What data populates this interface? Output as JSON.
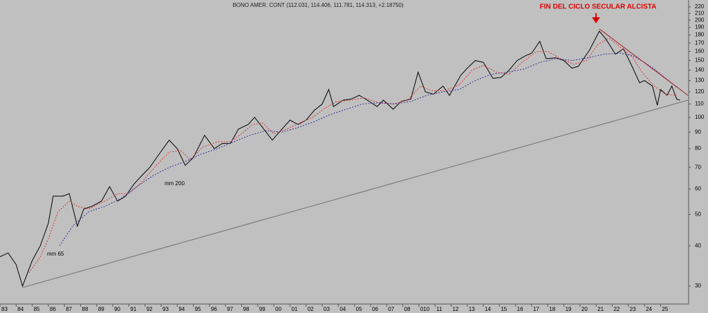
{
  "chart_data": {
    "type": "line",
    "title": "BONO AMER. CONT (112.031, 114.406, 111.781, 114.313, +2.18750)",
    "annotation": "FIN DEL CICLO SECULAR ALCISTA",
    "log_scale": true,
    "xlim": [
      1983.0,
      2025.7
    ],
    "ylim": [
      26.4,
      231
    ],
    "xticks": [
      {
        "value": 1983,
        "label": "83"
      },
      {
        "value": 1984,
        "label": "84"
      },
      {
        "value": 1985,
        "label": "85"
      },
      {
        "value": 1986,
        "label": "86"
      },
      {
        "value": 1987,
        "label": "87"
      },
      {
        "value": 1988,
        "label": "88"
      },
      {
        "value": 1989,
        "label": "89"
      },
      {
        "value": 1990,
        "label": "90"
      },
      {
        "value": 1991,
        "label": "91"
      },
      {
        "value": 1992,
        "label": "92"
      },
      {
        "value": 1993,
        "label": "93"
      },
      {
        "value": 1994,
        "label": "94"
      },
      {
        "value": 1995,
        "label": "95"
      },
      {
        "value": 1996,
        "label": "96"
      },
      {
        "value": 1997,
        "label": "97"
      },
      {
        "value": 1998,
        "label": "98"
      },
      {
        "value": 1999,
        "label": "99"
      },
      {
        "value": 2000,
        "label": "00"
      },
      {
        "value": 2001,
        "label": "01"
      },
      {
        "value": 2002,
        "label": "02"
      },
      {
        "value": 2003,
        "label": "03"
      },
      {
        "value": 2004,
        "label": "04"
      },
      {
        "value": 2005,
        "label": "05"
      },
      {
        "value": 2006,
        "label": "06"
      },
      {
        "value": 2007,
        "label": "07"
      },
      {
        "value": 2008,
        "label": "08"
      },
      {
        "value": 2009,
        "label": "010"
      },
      {
        "value": 2010,
        "label": "11"
      },
      {
        "value": 2011,
        "label": "12"
      },
      {
        "value": 2012,
        "label": "13"
      },
      {
        "value": 2013,
        "label": "14"
      },
      {
        "value": 2014,
        "label": "15"
      },
      {
        "value": 2015,
        "label": "16"
      },
      {
        "value": 2016,
        "label": "17"
      },
      {
        "value": 2017,
        "label": "18"
      },
      {
        "value": 2018,
        "label": "19"
      },
      {
        "value": 2019,
        "label": "20"
      },
      {
        "value": 2020,
        "label": "21"
      },
      {
        "value": 2021,
        "label": "22"
      },
      {
        "value": 2022,
        "label": "23"
      },
      {
        "value": 2023,
        "label": "24"
      },
      {
        "value": 2024,
        "label": "25"
      }
    ],
    "yticks": [
      30,
      40,
      50,
      60,
      70,
      80,
      90,
      100,
      110,
      120,
      130,
      140,
      150,
      160,
      170,
      180,
      190,
      200,
      210,
      220
    ],
    "series": [
      {
        "color": "#000000",
        "style": "solid",
        "x": [
          1983.0,
          1983.5,
          1984.0,
          1984.4,
          1985.0,
          1985.5,
          1986.0,
          1986.3,
          1986.9,
          1987.3,
          1987.8,
          1988.2,
          1988.7,
          1989.3,
          1989.8,
          1990.3,
          1990.8,
          1991.3,
          1991.8,
          1992.3,
          1992.8,
          1993.5,
          1994.0,
          1994.5,
          1995.0,
          1995.7,
          1996.3,
          1996.8,
          1997.3,
          1997.8,
          1998.4,
          1998.8,
          1999.3,
          1999.9,
          2000.5,
          2001.0,
          2001.5,
          2002.0,
          2002.5,
          2003.0,
          2003.4,
          2003.7,
          2004.3,
          2004.8,
          2005.3,
          2005.8,
          2006.4,
          2006.8,
          2007.4,
          2007.9,
          2008.5,
          2008.95,
          2009.4,
          2009.9,
          2010.5,
          2010.9,
          2011.6,
          2012.0,
          2012.5,
          2013.0,
          2013.6,
          2014.1,
          2014.6,
          2015.1,
          2015.6,
          2016.0,
          2016.5,
          2016.9,
          2017.5,
          2018.0,
          2018.5,
          2018.9,
          2019.6,
          2020.2,
          2020.6,
          2021.2,
          2021.7,
          2022.2,
          2022.7,
          2023.0,
          2023.5,
          2023.8,
          2024.0,
          2024.4,
          2024.7,
          2025.0,
          2025.2
        ],
        "values": [
          37,
          38,
          35,
          30,
          36,
          40,
          47,
          57,
          57,
          58,
          46,
          52,
          53,
          55,
          61,
          55,
          57,
          62,
          66,
          70,
          76,
          85,
          80,
          71,
          75,
          88,
          80,
          83,
          83,
          92,
          95,
          100,
          93,
          85,
          92,
          98,
          95,
          98,
          105,
          110,
          122,
          108,
          113,
          114,
          117,
          113,
          108,
          113,
          106,
          112,
          114,
          138,
          120,
          118,
          125,
          117,
          135,
          142,
          150,
          148,
          132,
          133,
          140,
          150,
          155,
          158,
          172,
          152,
          153,
          150,
          142,
          144,
          162,
          185,
          175,
          157,
          163,
          145,
          128,
          130,
          125,
          109,
          122,
          117,
          125,
          114,
          113
        ]
      },
      {
        "name": "mm 65",
        "color": "#e03030",
        "style": "dashed",
        "x": [
          1984.8,
          1985.5,
          1986.0,
          1986.6,
          1987.3,
          1987.8,
          1988.5,
          1989.5,
          1990.3,
          1991.0,
          1991.8,
          1992.6,
          1993.5,
          1994.2,
          1994.8,
          1995.6,
          1996.5,
          1997.3,
          1998.0,
          1998.7,
          1999.3,
          2000.0,
          2000.8,
          2001.6,
          2002.4,
          2003.2,
          2003.9,
          2004.8,
          2005.6,
          2006.5,
          2007.4,
          2008.3,
          2009.1,
          2009.8,
          2010.6,
          2011.5,
          2012.3,
          2013.0,
          2013.8,
          2014.6,
          2015.4,
          2016.3,
          2017.0,
          2017.8,
          2018.6,
          2019.4,
          2020.1,
          2020.8,
          2021.5,
          2022.2,
          2022.9,
          2023.6,
          2024.3,
          2025.0
        ],
        "values": [
          33,
          37,
          42,
          51,
          55,
          53,
          52,
          55,
          58,
          58,
          63,
          70,
          78,
          79,
          74,
          81,
          84,
          84,
          89,
          95,
          96,
          89,
          92,
          96,
          100,
          107,
          112,
          113,
          115,
          111,
          110,
          113,
          125,
          121,
          121,
          126,
          140,
          145,
          138,
          136,
          148,
          160,
          160,
          152,
          146,
          150,
          168,
          176,
          165,
          155,
          137,
          125,
          118,
          117
        ]
      },
      {
        "name": "mm 200",
        "color": "#3030a0",
        "style": "dashed",
        "x": [
          1986.7,
          1987.5,
          1988.5,
          1989.5,
          1990.5,
          1991.5,
          1992.5,
          1993.5,
          1994.5,
          1995.5,
          1996.5,
          1997.5,
          1998.5,
          1999.5,
          2000.5,
          2001.5,
          2002.5,
          2003.5,
          2004.5,
          2005.5,
          2006.5,
          2007.5,
          2008.5,
          2009.5,
          2010.5,
          2011.5,
          2012.5,
          2013.5,
          2014.5,
          2015.5,
          2016.5,
          2017.5,
          2018.5,
          2019.5,
          2020.5,
          2021.5,
          2022.3,
          2023.0,
          2023.7,
          2024.5,
          2025.0
        ],
        "values": [
          40,
          46,
          51,
          53,
          56,
          61,
          66,
          70,
          73,
          77,
          80,
          84,
          88,
          91,
          90,
          93,
          97,
          102,
          106,
          110,
          111,
          110,
          112,
          117,
          120,
          122,
          130,
          136,
          138,
          141,
          148,
          152,
          150,
          153,
          157,
          158,
          155,
          148,
          140,
          130,
          124
        ]
      },
      {
        "color": "#707070",
        "style": "solid",
        "x": [
          1984.4,
          2025.7
        ],
        "values": [
          29.7,
          113
        ]
      },
      {
        "color": "#a02020",
        "style": "solid",
        "x": [
          2020.2,
          2025.7
        ],
        "values": [
          188,
          117
        ]
      }
    ]
  }
}
